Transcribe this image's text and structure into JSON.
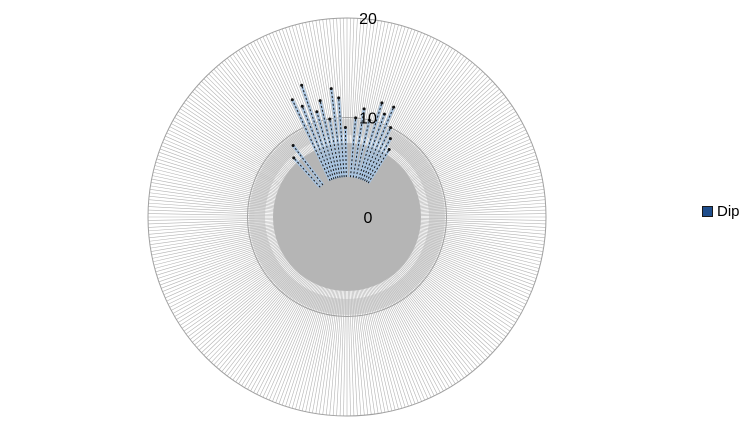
{
  "chart_data": {
    "type": "radar",
    "title": "",
    "series": [
      {
        "name": "Dip",
        "color": "#1f4e8c",
        "fill": "#a9c4e0",
        "values": [
          {
            "angle": 335,
            "r": 13
          },
          {
            "angle": 338,
            "r": 12
          },
          {
            "angle": 341,
            "r": 14
          },
          {
            "angle": 344,
            "r": 11
          },
          {
            "angle": 347,
            "r": 12
          },
          {
            "angle": 350,
            "r": 10
          },
          {
            "angle": 353,
            "r": 13
          },
          {
            "angle": 356,
            "r": 12
          },
          {
            "angle": 359,
            "r": 9
          },
          {
            "angle": 5,
            "r": 10
          },
          {
            "angle": 9,
            "r": 11
          },
          {
            "angle": 13,
            "r": 10
          },
          {
            "angle": 17,
            "r": 12
          },
          {
            "angle": 20,
            "r": 11
          },
          {
            "angle": 23,
            "r": 12
          },
          {
            "angle": 26,
            "r": 10
          },
          {
            "angle": 29,
            "r": 9
          },
          {
            "angle": 32,
            "r": 8
          },
          {
            "angle": 323,
            "r": 9
          },
          {
            "angle": 318,
            "r": 8
          }
        ]
      }
    ],
    "radial_axis": {
      "range": [
        0,
        20
      ],
      "ticks": [
        0,
        10,
        20
      ],
      "tick_labels": [
        "0",
        "10",
        "20"
      ]
    },
    "grid": true,
    "grid_color": "#b3b3b3",
    "legend_position": "right"
  }
}
